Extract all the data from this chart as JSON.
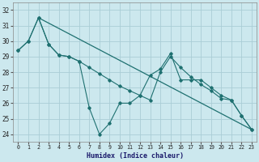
{
  "xlabel": "Humidex (Indice chaleur)",
  "xlim": [
    -0.5,
    23.5
  ],
  "ylim": [
    23.5,
    32.5
  ],
  "yticks": [
    24,
    25,
    26,
    27,
    28,
    29,
    30,
    31,
    32
  ],
  "xticks": [
    0,
    1,
    2,
    3,
    4,
    5,
    6,
    7,
    8,
    9,
    10,
    11,
    12,
    13,
    14,
    15,
    16,
    17,
    18,
    19,
    20,
    21,
    22,
    23
  ],
  "bg_color": "#cce8ee",
  "grid_color": "#aacdd6",
  "line_color": "#1e7070",
  "line1_x": [
    0,
    1,
    2,
    3,
    4,
    5,
    6,
    7,
    8,
    9,
    10,
    11,
    12,
    13,
    14,
    15,
    16,
    17,
    18,
    19,
    20,
    21,
    22,
    23
  ],
  "line1_y": [
    29.4,
    30.0,
    31.5,
    29.8,
    29.1,
    29.0,
    28.7,
    25.7,
    24.0,
    24.7,
    26.0,
    26.0,
    26.5,
    27.8,
    28.2,
    29.2,
    27.5,
    27.5,
    27.5,
    27.0,
    26.5,
    26.2,
    25.2,
    24.3
  ],
  "line2_x": [
    0,
    1,
    2,
    3,
    4,
    5,
    6,
    7,
    8,
    9,
    10,
    11,
    12,
    13,
    14,
    15,
    16,
    17,
    18,
    19,
    20,
    21,
    22,
    23
  ],
  "line2_y": [
    29.4,
    30.0,
    31.5,
    29.8,
    29.1,
    29.0,
    28.7,
    28.3,
    27.9,
    27.5,
    27.1,
    26.8,
    26.5,
    26.2,
    28.0,
    29.0,
    28.3,
    27.7,
    27.2,
    26.8,
    26.3,
    26.2,
    25.2,
    24.3
  ],
  "line3_x": [
    2,
    23
  ],
  "line3_y": [
    31.5,
    24.3
  ]
}
